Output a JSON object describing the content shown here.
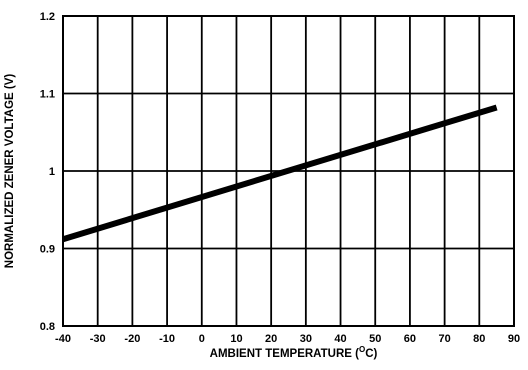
{
  "chart_data": {
    "type": "line",
    "title": "",
    "xlabel": "AMBIENT TEMPERATURE (",
    "xlabel_sup": "O",
    "xlabel_tail": "C)",
    "ylabel": "NORMALIZED ZENER VOLTAGE (V)",
    "xlim": [
      -40,
      90
    ],
    "ylim": [
      0.8,
      1.2
    ],
    "x_ticks": [
      "-40",
      "-30",
      "-20",
      "-10",
      "0",
      "10",
      "20",
      "30",
      "40",
      "50",
      "60",
      "70",
      "80",
      "90"
    ],
    "y_ticks": [
      "0.8",
      "0.9",
      "1",
      "1.1",
      "1.2"
    ],
    "grid": true,
    "series": [
      {
        "x": [
          -40,
          85
        ],
        "y": [
          0.912,
          1.082
        ],
        "color": "#000000"
      }
    ]
  }
}
